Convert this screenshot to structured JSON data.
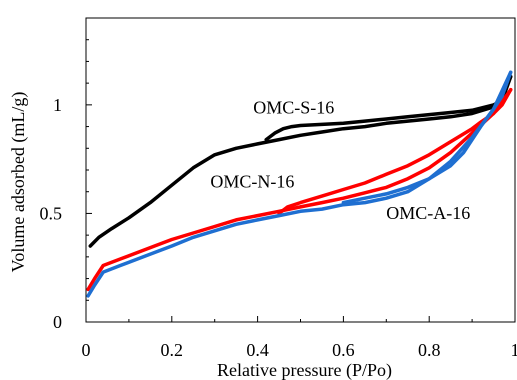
{
  "chart_data": {
    "type": "line",
    "xlabel": "Relative pressure  (P/Po)",
    "ylabel": "Volume adsorbed (mL/g)",
    "xlim": [
      0,
      1
    ],
    "ylim": [
      0,
      1.4
    ],
    "x_ticks": [
      "0",
      "0.2",
      "0.4",
      "0.6",
      "0.8",
      "1"
    ],
    "x_tick_values": [
      0,
      0.2,
      0.4,
      0.6,
      0.8,
      1.0
    ],
    "y_ticks": [
      "0",
      "0.5",
      "1"
    ],
    "y_tick_values": [
      0,
      0.5,
      1.0
    ],
    "grid": false,
    "legend": "none",
    "series": [
      {
        "name": "OMC-S-16",
        "color": "#000000",
        "adsorption": {
          "x": [
            0.01,
            0.03,
            0.06,
            0.1,
            0.15,
            0.2,
            0.25,
            0.3,
            0.35,
            0.4,
            0.45,
            0.5,
            0.55,
            0.6,
            0.65,
            0.7,
            0.75,
            0.8,
            0.85,
            0.9,
            0.95,
            0.97,
            0.99
          ],
          "y": [
            0.35,
            0.39,
            0.43,
            0.48,
            0.55,
            0.63,
            0.71,
            0.77,
            0.8,
            0.82,
            0.84,
            0.86,
            0.875,
            0.89,
            0.9,
            0.915,
            0.925,
            0.935,
            0.945,
            0.96,
            0.99,
            1.03,
            1.13
          ]
        },
        "desorption": {
          "x": [
            0.99,
            0.97,
            0.95,
            0.9,
            0.85,
            0.8,
            0.75,
            0.7,
            0.65,
            0.6,
            0.55,
            0.5,
            0.48,
            0.46,
            0.44,
            0.42
          ],
          "y": [
            1.13,
            1.02,
            1.0,
            0.975,
            0.965,
            0.955,
            0.945,
            0.935,
            0.925,
            0.915,
            0.91,
            0.905,
            0.9,
            0.89,
            0.87,
            0.84
          ]
        }
      },
      {
        "name": "OMC-N-16",
        "color": "#ff0000",
        "adsorption": {
          "x": [
            0.005,
            0.02,
            0.04,
            0.08,
            0.12,
            0.16,
            0.2,
            0.25,
            0.3,
            0.35,
            0.4,
            0.45,
            0.5,
            0.55,
            0.6,
            0.65,
            0.7,
            0.75,
            0.8,
            0.85,
            0.9,
            0.95,
            0.99
          ],
          "y": [
            0.15,
            0.2,
            0.26,
            0.29,
            0.32,
            0.35,
            0.38,
            0.41,
            0.44,
            0.47,
            0.49,
            0.51,
            0.53,
            0.55,
            0.57,
            0.595,
            0.62,
            0.66,
            0.71,
            0.78,
            0.87,
            0.96,
            1.07
          ]
        },
        "desorption": {
          "x": [
            0.99,
            0.97,
            0.95,
            0.92,
            0.9,
            0.85,
            0.8,
            0.75,
            0.7,
            0.65,
            0.6,
            0.55,
            0.5,
            0.47,
            0.45
          ],
          "y": [
            1.07,
            1.0,
            0.96,
            0.92,
            0.89,
            0.83,
            0.77,
            0.72,
            0.68,
            0.64,
            0.61,
            0.58,
            0.55,
            0.53,
            0.5
          ]
        }
      },
      {
        "name": "OMC-A-16",
        "color": "#1f6fd1",
        "adsorption": {
          "x": [
            0.005,
            0.02,
            0.04,
            0.08,
            0.12,
            0.16,
            0.2,
            0.25,
            0.3,
            0.35,
            0.4,
            0.45,
            0.5,
            0.55,
            0.6,
            0.65,
            0.7,
            0.75,
            0.8,
            0.85,
            0.9,
            0.95,
            0.99
          ],
          "y": [
            0.12,
            0.17,
            0.23,
            0.26,
            0.29,
            0.32,
            0.35,
            0.39,
            0.42,
            0.45,
            0.47,
            0.49,
            0.51,
            0.52,
            0.54,
            0.55,
            0.57,
            0.6,
            0.66,
            0.74,
            0.85,
            0.98,
            1.15
          ]
        },
        "desorption": {
          "x": [
            0.99,
            0.97,
            0.95,
            0.92,
            0.9,
            0.88,
            0.85,
            0.8,
            0.75,
            0.7,
            0.65,
            0.6
          ],
          "y": [
            1.15,
            1.04,
            0.98,
            0.9,
            0.84,
            0.78,
            0.72,
            0.66,
            0.62,
            0.59,
            0.57,
            0.55
          ]
        }
      }
    ],
    "annotations": [
      {
        "text": "OMC-S-16",
        "x": 0.39,
        "y": 0.96,
        "color": "#000000"
      },
      {
        "text": "OMC-N-16",
        "x": 0.29,
        "y": 0.62,
        "color": "#ff0000"
      },
      {
        "text": "OMC-A-16",
        "x": 0.7,
        "y": 0.475,
        "color": "#1f6fd1"
      }
    ]
  }
}
